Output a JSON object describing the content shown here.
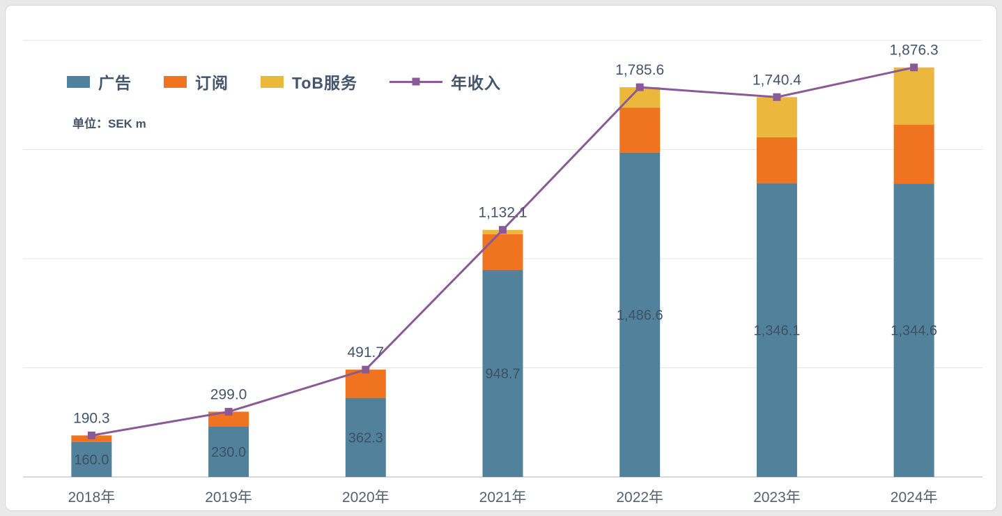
{
  "chart_data": {
    "type": "bar",
    "variant": "stacked-bar-with-line-overlay",
    "title": "",
    "unit_label": "单位：SEK m",
    "legend": [
      "广告",
      "订阅",
      "ToB服务",
      "年收入"
    ],
    "legend_position": "top-left",
    "categories": [
      "2018年",
      "2019年",
      "2020年",
      "2021年",
      "2022年",
      "2023年",
      "2024年"
    ],
    "series": [
      {
        "key": "ads",
        "name": "广告",
        "type": "bar",
        "values": [
          160.0,
          230.0,
          362.3,
          948.7,
          1486.6,
          1346.1,
          1344.6
        ],
        "labels": [
          "160.0",
          "230.0",
          "362.3",
          "948.7",
          "1,486.6",
          "1,346.1",
          "1,344.6"
        ]
      },
      {
        "key": "subscription",
        "name": "订阅",
        "type": "bar",
        "values": [
          30.3,
          69.0,
          129.4,
          163.4,
          205.0,
          210.0,
          270.0
        ]
      },
      {
        "key": "tob",
        "name": "ToB服务",
        "type": "bar",
        "values": [
          0,
          0,
          0,
          20.0,
          94.0,
          184.3,
          261.7
        ]
      },
      {
        "key": "revenue",
        "name": "年收入",
        "type": "line",
        "values": [
          190.3,
          299.0,
          491.7,
          1132.1,
          1785.6,
          1740.4,
          1876.3
        ],
        "labels": [
          "190.3",
          "299.0",
          "491.7",
          "1,132.1",
          "1,785.6",
          "1,740.4",
          "1,876.3"
        ]
      }
    ],
    "ylim": [
      0,
      2000
    ],
    "gridline_step": 500,
    "grid": true,
    "colors": {
      "ads": "#52819c",
      "subscription": "#f0741f",
      "tob": "#ecb73d",
      "revenue": "#8a5a96",
      "label": "#44546a",
      "inner_label": "#3c5163",
      "axis_label": "#54616e",
      "grid": "#e5e5e5",
      "axis": "#cccccc",
      "background": "#ffffff"
    }
  }
}
